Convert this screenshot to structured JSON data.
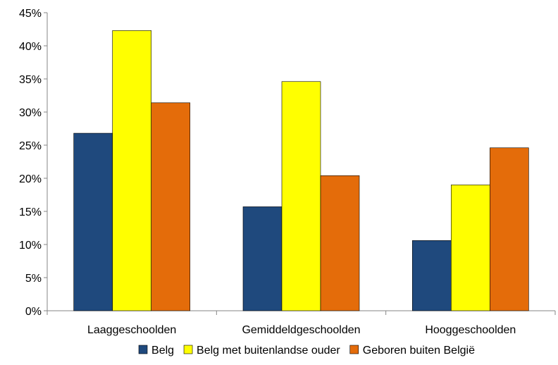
{
  "chart_data": {
    "type": "bar",
    "title": "",
    "xlabel": "",
    "ylabel": "",
    "categories": [
      "Laaggeschoolden",
      "Gemiddeldgeschoolden",
      "Hooggeschoolden"
    ],
    "series": [
      {
        "name": "Belg",
        "color": "#1F497D",
        "values": [
          26.8,
          15.7,
          10.6
        ]
      },
      {
        "name": "Belg met buitenlandse ouder",
        "color": "#FFFF00",
        "values": [
          42.3,
          34.6,
          19.0
        ]
      },
      {
        "name": "Geboren buiten België",
        "color": "#E46C0A",
        "values": [
          31.4,
          20.4,
          24.6
        ]
      }
    ],
    "ylim": [
      0,
      45
    ],
    "yticks": [
      0,
      5,
      10,
      15,
      20,
      25,
      30,
      35,
      40,
      45
    ],
    "ytick_labels": [
      "0%",
      "5%",
      "10%",
      "15%",
      "20%",
      "25%",
      "30%",
      "35%",
      "40%",
      "45%"
    ],
    "grid": false,
    "legend_position": "bottom"
  }
}
